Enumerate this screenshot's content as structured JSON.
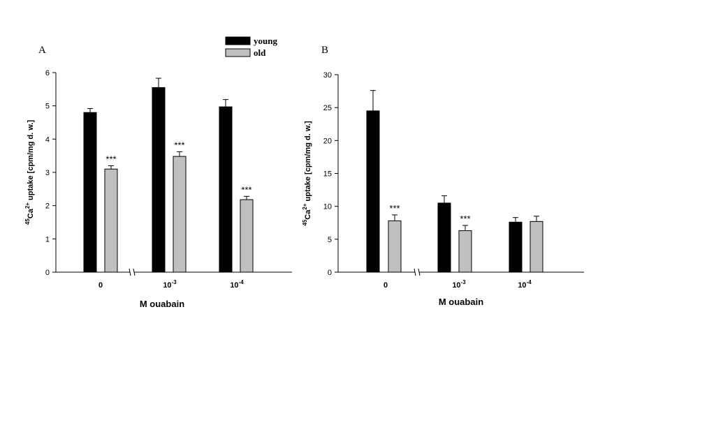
{
  "legend": {
    "entries": [
      {
        "label": "young",
        "color": "#000000"
      },
      {
        "label": "old",
        "color": "#c0c0c0"
      }
    ]
  },
  "chart_data": [
    {
      "type": "bar",
      "panel_label": "A",
      "categories": [
        "0",
        "10-3",
        "10-4"
      ],
      "xlabel": "M ouabain",
      "ylabel": "45Ca2+ uptake [cpm/mg d. w.]",
      "ylim": [
        0,
        6
      ],
      "yticks": [
        0,
        1,
        2,
        3,
        4,
        5,
        6
      ],
      "axis_break": true,
      "series": [
        {
          "name": "young",
          "color": "#000000",
          "values": [
            4.8,
            5.55,
            4.97
          ],
          "errors": [
            0.12,
            0.28,
            0.22
          ]
        },
        {
          "name": "old",
          "color": "#c0c0c0",
          "values": [
            3.1,
            3.48,
            2.18
          ],
          "errors": [
            0.1,
            0.14,
            0.1
          ]
        }
      ],
      "annotations": [
        {
          "series": "old",
          "category": "0",
          "text": "***"
        },
        {
          "series": "old",
          "category": "10-3",
          "text": "***"
        },
        {
          "series": "old",
          "category": "10-4",
          "text": "***"
        }
      ]
    },
    {
      "type": "bar",
      "panel_label": "B",
      "categories": [
        "0",
        "10-3",
        "10-4"
      ],
      "xlabel": "M ouabain",
      "ylabel": "45Ca2+ uptake [cpm/mg d. w.]",
      "ylim": [
        0,
        30
      ],
      "yticks": [
        0,
        5,
        10,
        15,
        20,
        25,
        30
      ],
      "axis_break": true,
      "series": [
        {
          "name": "young",
          "color": "#000000",
          "values": [
            24.5,
            10.5,
            7.6
          ],
          "errors": [
            3.1,
            1.1,
            0.7
          ]
        },
        {
          "name": "old",
          "color": "#c0c0c0",
          "values": [
            7.8,
            6.3,
            7.7
          ],
          "errors": [
            0.9,
            0.8,
            0.8
          ]
        }
      ],
      "annotations": [
        {
          "series": "old",
          "category": "0",
          "text": "***"
        },
        {
          "series": "old",
          "category": "10-3",
          "text": "***"
        }
      ]
    }
  ]
}
